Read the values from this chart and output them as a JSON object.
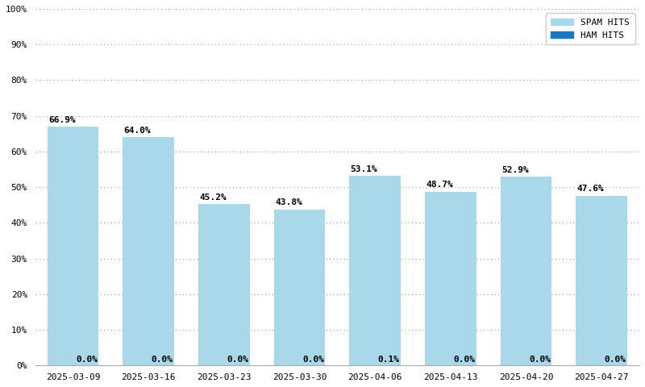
{
  "categories": [
    "2025-03-09",
    "2025-03-16",
    "2025-03-23",
    "2025-03-30",
    "2025-04-06",
    "2025-04-13",
    "2025-04-20",
    "2025-04-27"
  ],
  "spam_hits": [
    66.9,
    64.0,
    45.2,
    43.8,
    53.1,
    48.7,
    52.9,
    47.6
  ],
  "ham_hits": [
    0.0,
    0.0,
    0.0,
    0.0,
    0.1,
    0.0,
    0.0,
    0.0
  ],
  "spam_color": "#a8d8ea",
  "ham_color": "#1a78c2",
  "background_color": "#ffffff",
  "grid_color": "#999999",
  "bar_width": 0.68,
  "ylim": [
    0,
    100
  ],
  "yticks": [
    0,
    10,
    20,
    30,
    40,
    50,
    60,
    70,
    80,
    90,
    100
  ],
  "legend_spam": "SPAM HITS",
  "legend_ham": "HAM HITS",
  "label_fontsize": 8,
  "tick_fontsize": 8,
  "legend_fontsize": 8
}
